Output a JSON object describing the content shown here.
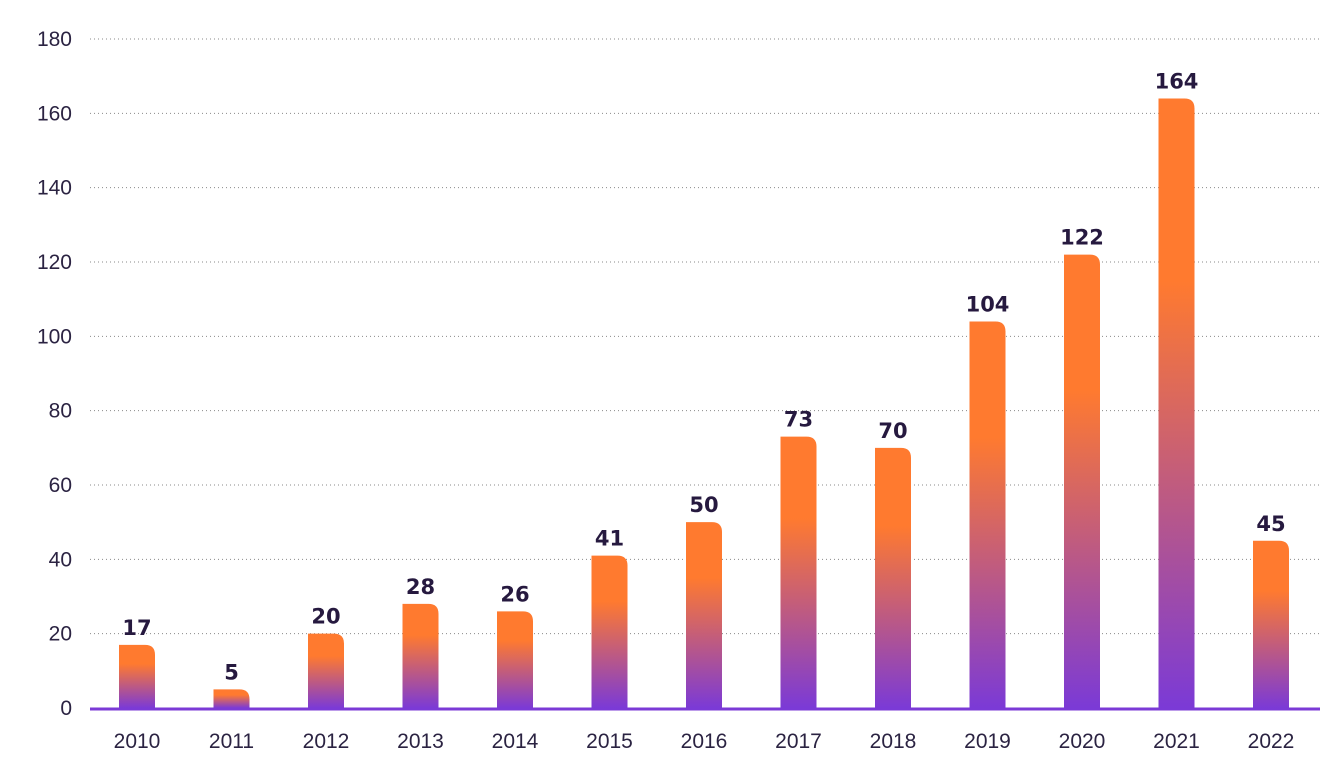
{
  "chart_data": {
    "type": "bar",
    "categories": [
      "2010",
      "2011",
      "2012",
      "2013",
      "2014",
      "2015",
      "2016",
      "2017",
      "2018",
      "2019",
      "2020",
      "2021",
      "2022"
    ],
    "values": [
      17,
      5,
      20,
      28,
      26,
      41,
      50,
      73,
      70,
      104,
      122,
      164,
      45
    ],
    "ylim": [
      0,
      180
    ],
    "yticks": [
      0,
      20,
      40,
      60,
      80,
      100,
      120,
      140,
      160,
      180
    ],
    "grid": true,
    "data_labels": true,
    "colors": {
      "bar_top": "#ff7a2f",
      "bar_bottom": "#7b3ad6",
      "axis": "#7b3ad6",
      "text": "#26193f"
    }
  }
}
